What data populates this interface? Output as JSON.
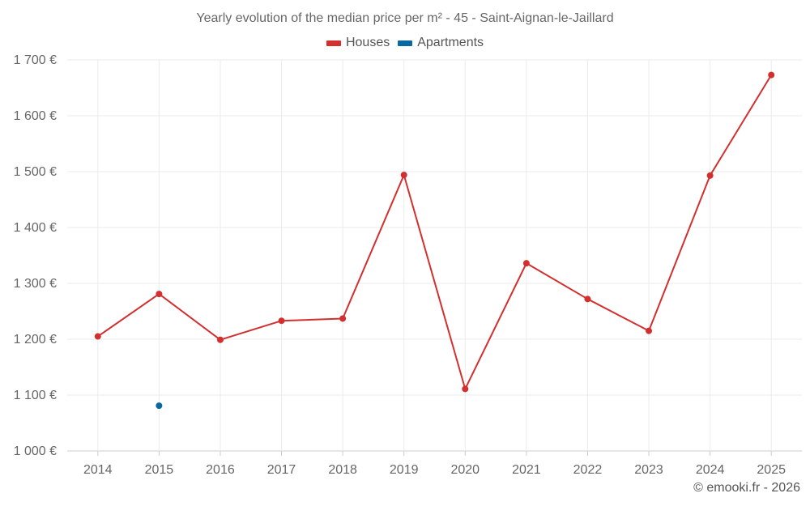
{
  "chart_data": {
    "type": "line",
    "title": "Yearly evolution of the median price per m² - 45 - Saint-Aignan-le-Jaillard",
    "xlabel": "",
    "ylabel": "",
    "categories": [
      "2014",
      "2015",
      "2016",
      "2017",
      "2018",
      "2019",
      "2020",
      "2021",
      "2022",
      "2023",
      "2024",
      "2025"
    ],
    "series": [
      {
        "name": "Houses",
        "color": "#d32f2f",
        "values": [
          1205,
          1281,
          1199,
          1233,
          1237,
          1494,
          1111,
          1336,
          1272,
          1215,
          1493,
          1673
        ]
      },
      {
        "name": "Apartments",
        "color": "#0868a2",
        "values": [
          null,
          1081,
          null,
          null,
          null,
          null,
          null,
          null,
          null,
          null,
          null,
          null
        ]
      }
    ],
    "ylim": [
      1000,
      1700
    ],
    "yticks": [
      "1 000 €",
      "1 100 €",
      "1 200 €",
      "1 300 €",
      "1 400 €",
      "1 500 €",
      "1 600 €",
      "1 700 €"
    ],
    "ytick_values": [
      1000,
      1100,
      1200,
      1300,
      1400,
      1500,
      1600,
      1700
    ],
    "grid": true,
    "legend_position": "top-center"
  },
  "credit": "© emooki.fr - 2026"
}
